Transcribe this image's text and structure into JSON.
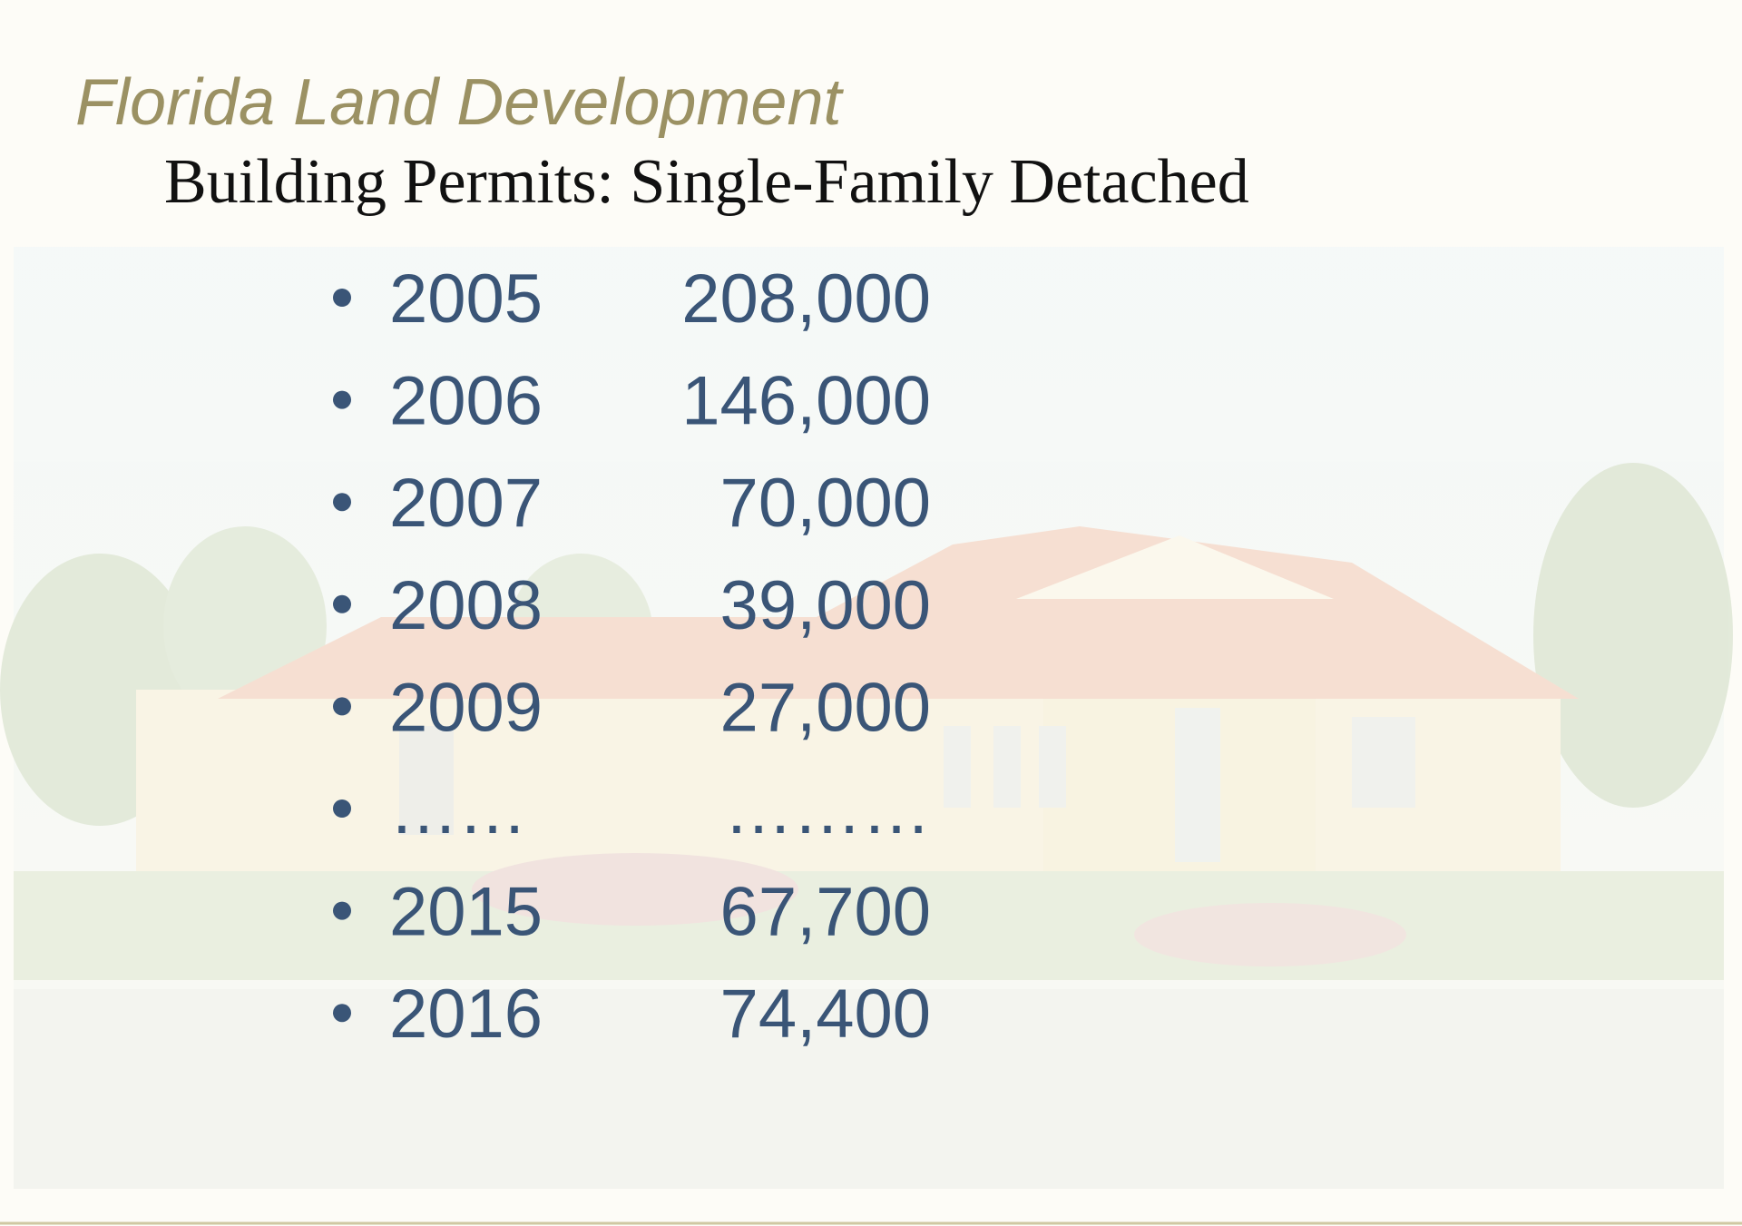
{
  "header": {
    "title": "Florida Land Development",
    "subtitle": "Building Permits: Single-Family Detached"
  },
  "list": {
    "items": [
      {
        "year": "2005",
        "value": "208,000"
      },
      {
        "year": "2006",
        "value": "146,000"
      },
      {
        "year": "2007",
        "value": "70,000"
      },
      {
        "year": "2008",
        "value": "39,000"
      },
      {
        "year": "2009",
        "value": "27,000"
      },
      {
        "year": "……",
        "value": "………"
      },
      {
        "year": "2015",
        "value": "67,700"
      },
      {
        "year": "2016",
        "value": "74,400"
      }
    ]
  }
}
